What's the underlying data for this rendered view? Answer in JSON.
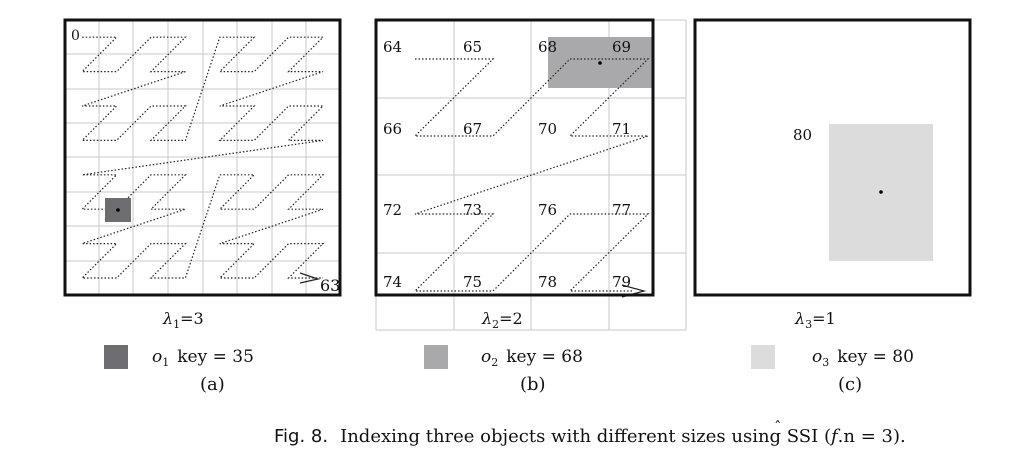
{
  "panels": [
    {
      "id": "a",
      "lambda_label": "λ",
      "lambda_sub": "1",
      "lambda_value": "=3",
      "start_label": "0",
      "end_label": "63",
      "object": {
        "name": "o",
        "sub": "1",
        "key_text": "key = 35",
        "color": "#6e6e72"
      },
      "panel_label": "(a)"
    },
    {
      "id": "b",
      "lambda_label": "λ",
      "lambda_sub": "2",
      "lambda_value": "=2",
      "cell_keys": [
        "64",
        "65",
        "68",
        "69",
        "66",
        "67",
        "70",
        "71",
        "72",
        "73",
        "76",
        "77",
        "74",
        "75",
        "78",
        "79"
      ],
      "object": {
        "name": "o",
        "sub": "2",
        "key_text": "key = 68",
        "color": "#a9a9ab"
      },
      "panel_label": "(b)"
    },
    {
      "id": "c",
      "lambda_label": "λ",
      "lambda_sub": "3",
      "lambda_value": "=1",
      "cell_key": "80",
      "object": {
        "name": "o",
        "sub": "3",
        "key_text": "key = 80",
        "color": "#dcdcdc"
      },
      "panel_label": "(c)"
    }
  ],
  "caption": {
    "fig": "Fig. 8.",
    "text_pre": "Indexing three objects with different sizes using SSI (",
    "f": "f",
    "hat": "ˆ",
    "text_post": ".n = 3)."
  }
}
